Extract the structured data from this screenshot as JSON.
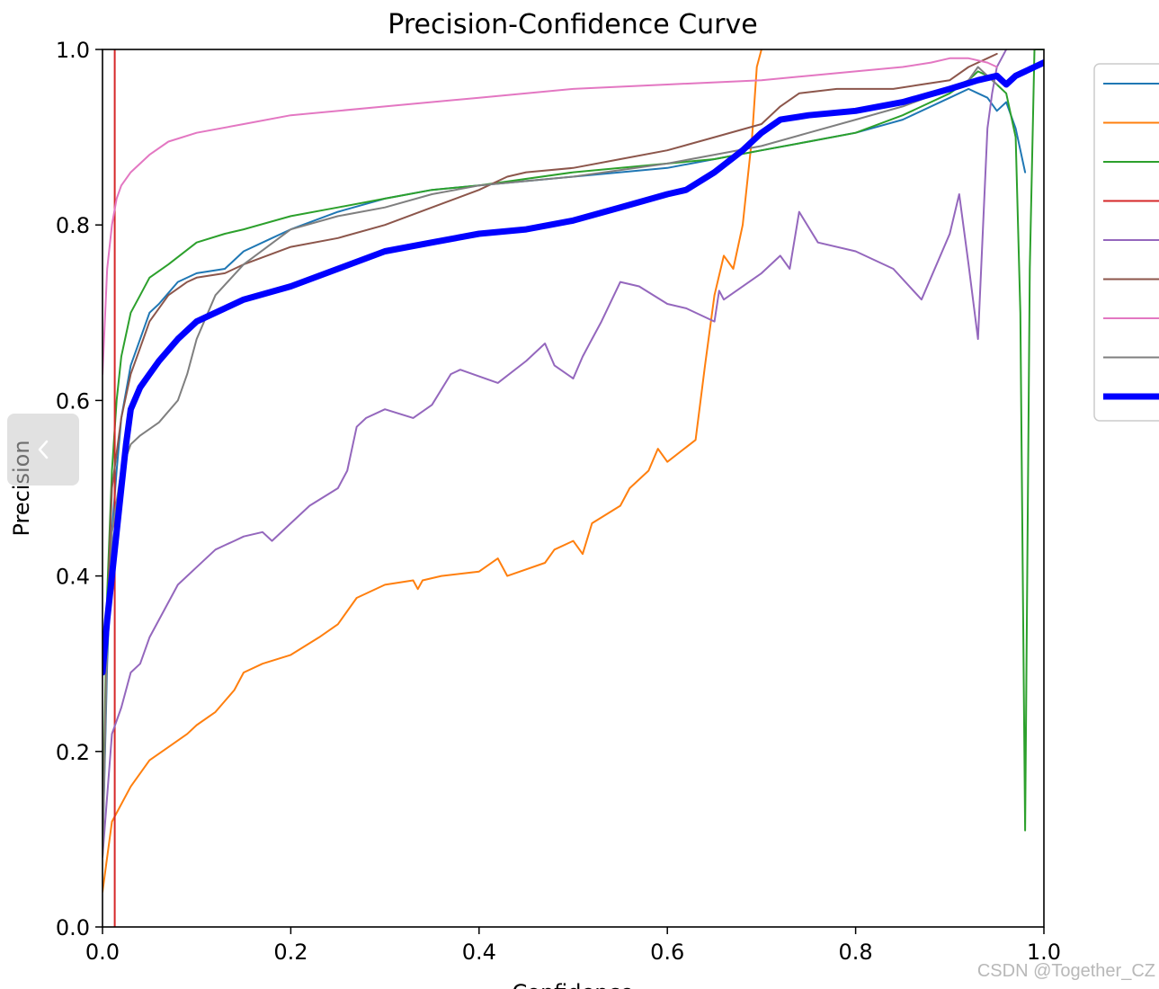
{
  "chart_data": {
    "type": "line",
    "title": "Precision-Confidence Curve",
    "xlabel": "Confidence",
    "ylabel": "Precision",
    "xlim": [
      0,
      1
    ],
    "ylim": [
      0,
      1
    ],
    "xticks": [
      "0.0",
      "0.2",
      "0.4",
      "0.6",
      "0.8",
      "1.0"
    ],
    "yticks": [
      "0.0",
      "0.2",
      "0.4",
      "0.6",
      "0.8",
      "1.0"
    ],
    "legend_position": "right-outside-top",
    "series": [
      {
        "name": "",
        "color": "#1f77b4",
        "width": 2,
        "x": [
          0,
          0.005,
          0.01,
          0.015,
          0.02,
          0.03,
          0.04,
          0.05,
          0.06,
          0.08,
          0.1,
          0.13,
          0.15,
          0.18,
          0.2,
          0.25,
          0.3,
          0.35,
          0.4,
          0.5,
          0.6,
          0.65,
          0.7,
          0.75,
          0.8,
          0.85,
          0.9,
          0.92,
          0.93,
          0.94,
          0.95,
          0.96,
          0.97,
          0.98
        ],
        "y": [
          0.08,
          0.3,
          0.45,
          0.52,
          0.58,
          0.64,
          0.67,
          0.7,
          0.71,
          0.735,
          0.745,
          0.75,
          0.77,
          0.785,
          0.795,
          0.815,
          0.83,
          0.84,
          0.845,
          0.855,
          0.865,
          0.875,
          0.885,
          0.895,
          0.905,
          0.92,
          0.945,
          0.955,
          0.95,
          0.945,
          0.93,
          0.94,
          0.91,
          0.86
        ]
      },
      {
        "name": "",
        "color": "#ff7f0e",
        "width": 2,
        "x": [
          0,
          0.01,
          0.03,
          0.05,
          0.07,
          0.09,
          0.1,
          0.12,
          0.14,
          0.15,
          0.17,
          0.2,
          0.23,
          0.25,
          0.27,
          0.3,
          0.33,
          0.335,
          0.34,
          0.36,
          0.4,
          0.42,
          0.43,
          0.47,
          0.48,
          0.5,
          0.51,
          0.52,
          0.55,
          0.56,
          0.58,
          0.59,
          0.6,
          0.63,
          0.64,
          0.65,
          0.66,
          0.67,
          0.68,
          0.69,
          0.695,
          0.7
        ],
        "y": [
          0.04,
          0.12,
          0.16,
          0.19,
          0.205,
          0.22,
          0.23,
          0.245,
          0.27,
          0.29,
          0.3,
          0.31,
          0.33,
          0.345,
          0.375,
          0.39,
          0.395,
          0.385,
          0.395,
          0.4,
          0.405,
          0.42,
          0.4,
          0.415,
          0.43,
          0.44,
          0.425,
          0.46,
          0.48,
          0.5,
          0.52,
          0.545,
          0.53,
          0.555,
          0.64,
          0.72,
          0.765,
          0.75,
          0.8,
          0.9,
          0.98,
          1.0
        ]
      },
      {
        "name": "",
        "color": "#2ca02c",
        "width": 2,
        "x": [
          0,
          0.005,
          0.01,
          0.015,
          0.02,
          0.03,
          0.04,
          0.05,
          0.07,
          0.1,
          0.13,
          0.15,
          0.2,
          0.25,
          0.3,
          0.35,
          0.4,
          0.5,
          0.6,
          0.65,
          0.7,
          0.75,
          0.8,
          0.85,
          0.9,
          0.92,
          0.93,
          0.94,
          0.95,
          0.96,
          0.97,
          0.975,
          0.98,
          0.985,
          0.99,
          1.0
        ],
        "y": [
          0.1,
          0.38,
          0.52,
          0.6,
          0.65,
          0.7,
          0.72,
          0.74,
          0.755,
          0.78,
          0.79,
          0.795,
          0.81,
          0.82,
          0.83,
          0.84,
          0.845,
          0.86,
          0.87,
          0.875,
          0.885,
          0.895,
          0.905,
          0.925,
          0.95,
          0.965,
          0.975,
          0.97,
          0.96,
          0.95,
          0.9,
          0.7,
          0.11,
          0.75,
          1.0,
          1.0
        ]
      },
      {
        "name": "",
        "color": "#d62728",
        "width": 2,
        "x": [
          0.013,
          0.013
        ],
        "y": [
          0,
          1
        ]
      },
      {
        "name": "",
        "color": "#9467bd",
        "width": 2,
        "x": [
          0,
          0.01,
          0.02,
          0.03,
          0.04,
          0.05,
          0.06,
          0.07,
          0.08,
          0.1,
          0.12,
          0.13,
          0.14,
          0.15,
          0.17,
          0.18,
          0.2,
          0.22,
          0.25,
          0.26,
          0.27,
          0.28,
          0.3,
          0.33,
          0.35,
          0.37,
          0.38,
          0.42,
          0.45,
          0.47,
          0.48,
          0.5,
          0.51,
          0.52,
          0.53,
          0.55,
          0.57,
          0.6,
          0.62,
          0.65,
          0.655,
          0.66,
          0.7,
          0.72,
          0.73,
          0.74,
          0.76,
          0.8,
          0.84,
          0.87,
          0.9,
          0.91,
          0.92,
          0.93,
          0.94,
          0.945,
          0.95,
          0.955,
          0.96
        ],
        "y": [
          0.08,
          0.22,
          0.25,
          0.29,
          0.3,
          0.33,
          0.35,
          0.37,
          0.39,
          0.41,
          0.43,
          0.435,
          0.44,
          0.445,
          0.45,
          0.44,
          0.46,
          0.48,
          0.5,
          0.52,
          0.57,
          0.58,
          0.59,
          0.58,
          0.595,
          0.63,
          0.635,
          0.62,
          0.645,
          0.665,
          0.64,
          0.625,
          0.65,
          0.67,
          0.69,
          0.735,
          0.73,
          0.71,
          0.705,
          0.69,
          0.725,
          0.715,
          0.745,
          0.765,
          0.75,
          0.815,
          0.78,
          0.77,
          0.75,
          0.715,
          0.79,
          0.835,
          0.755,
          0.67,
          0.91,
          0.95,
          0.98,
          0.99,
          1.0
        ]
      },
      {
        "name": "",
        "color": "#8c564b",
        "width": 2,
        "x": [
          0,
          0.005,
          0.01,
          0.02,
          0.03,
          0.04,
          0.05,
          0.07,
          0.09,
          0.1,
          0.13,
          0.15,
          0.2,
          0.25,
          0.3,
          0.35,
          0.4,
          0.43,
          0.45,
          0.5,
          0.55,
          0.6,
          0.65,
          0.7,
          0.72,
          0.74,
          0.78,
          0.84,
          0.87,
          0.9,
          0.92,
          0.93,
          0.94,
          0.95
        ],
        "y": [
          0.08,
          0.35,
          0.5,
          0.58,
          0.63,
          0.66,
          0.69,
          0.72,
          0.735,
          0.74,
          0.745,
          0.755,
          0.775,
          0.785,
          0.8,
          0.82,
          0.84,
          0.855,
          0.86,
          0.865,
          0.875,
          0.885,
          0.9,
          0.915,
          0.935,
          0.95,
          0.955,
          0.955,
          0.96,
          0.965,
          0.98,
          0.985,
          0.99,
          0.995
        ]
      },
      {
        "name": "",
        "color": "#e377c2",
        "width": 2,
        "x": [
          0,
          0.005,
          0.01,
          0.015,
          0.02,
          0.03,
          0.05,
          0.07,
          0.1,
          0.15,
          0.2,
          0.3,
          0.4,
          0.5,
          0.6,
          0.7,
          0.8,
          0.85,
          0.88,
          0.9,
          0.92,
          0.94,
          0.95
        ],
        "y": [
          0.63,
          0.75,
          0.8,
          0.83,
          0.845,
          0.86,
          0.88,
          0.895,
          0.905,
          0.915,
          0.925,
          0.935,
          0.945,
          0.955,
          0.96,
          0.965,
          0.975,
          0.98,
          0.985,
          0.99,
          0.99,
          0.985,
          0.98
        ]
      },
      {
        "name": "",
        "color": "#7f7f7f",
        "width": 2,
        "x": [
          0,
          0.005,
          0.01,
          0.02,
          0.03,
          0.04,
          0.06,
          0.08,
          0.09,
          0.1,
          0.12,
          0.15,
          0.2,
          0.25,
          0.3,
          0.35,
          0.4,
          0.5,
          0.6,
          0.65,
          0.7,
          0.75,
          0.8,
          0.85,
          0.9,
          0.92,
          0.93,
          0.94,
          0.95
        ],
        "y": [
          0.08,
          0.32,
          0.45,
          0.52,
          0.55,
          0.56,
          0.575,
          0.6,
          0.63,
          0.67,
          0.72,
          0.755,
          0.795,
          0.81,
          0.82,
          0.835,
          0.845,
          0.855,
          0.87,
          0.88,
          0.89,
          0.905,
          0.92,
          0.935,
          0.955,
          0.965,
          0.98,
          0.97,
          0.96
        ]
      },
      {
        "name": "",
        "color": "#0000ff",
        "width": 7,
        "x": [
          0,
          0.005,
          0.01,
          0.015,
          0.02,
          0.025,
          0.03,
          0.04,
          0.05,
          0.06,
          0.08,
          0.1,
          0.13,
          0.15,
          0.2,
          0.25,
          0.3,
          0.35,
          0.4,
          0.45,
          0.5,
          0.55,
          0.6,
          0.62,
          0.65,
          0.68,
          0.7,
          0.72,
          0.75,
          0.8,
          0.85,
          0.9,
          0.93,
          0.95,
          0.96,
          0.97,
          0.98,
          0.99,
          1.0
        ],
        "y": [
          0.29,
          0.35,
          0.4,
          0.45,
          0.5,
          0.55,
          0.59,
          0.615,
          0.63,
          0.645,
          0.67,
          0.69,
          0.705,
          0.715,
          0.73,
          0.75,
          0.77,
          0.78,
          0.79,
          0.795,
          0.805,
          0.82,
          0.835,
          0.84,
          0.86,
          0.885,
          0.905,
          0.92,
          0.925,
          0.93,
          0.94,
          0.955,
          0.965,
          0.97,
          0.96,
          0.97,
          0.975,
          0.98,
          0.985
        ]
      }
    ]
  },
  "ui": {
    "back_icon": "chevron-left-icon",
    "watermark": "CSDN @Together_CZ"
  }
}
